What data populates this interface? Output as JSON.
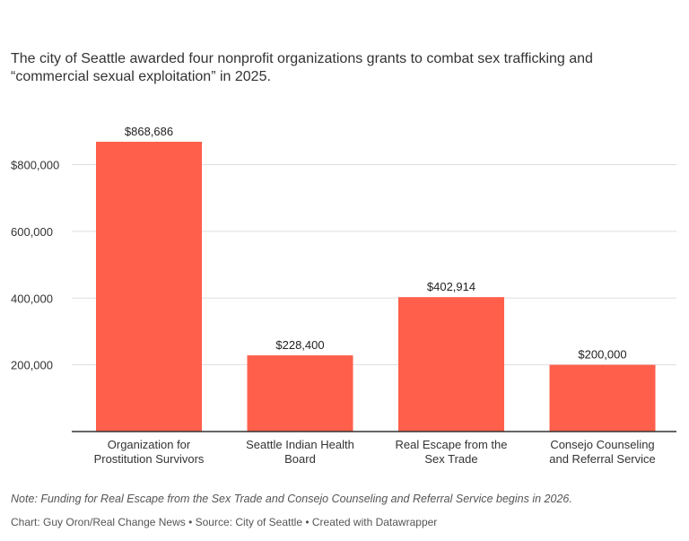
{
  "title": "The city of Seattle awarded four nonprofit organizations grants to combat sex trafficking and “commercial sexual exploitation” in 2025.",
  "note": "Note: Funding for Real Escape from the Sex Trade and Consejo Counseling and Referral Service begins in 2026.",
  "credit": "Chart: Guy Oron/Real Change News • Source: City of Seattle • Created with Datawrapper",
  "colors": {
    "bar": "#ff5f4b",
    "grid": "#dddddd",
    "axis": "#333333"
  },
  "chart_data": {
    "type": "bar",
    "title": "The city of Seattle awarded four nonprofit organizations grants to combat sex trafficking and “commercial sexual exploitation” in 2025.",
    "xlabel": "",
    "ylabel": "",
    "categories": [
      [
        "Organization for",
        "Prostitution Survivors"
      ],
      [
        "Seattle Indian Health",
        "Board"
      ],
      [
        "Real Escape from the",
        "Sex Trade"
      ],
      [
        "Consejo Counseling",
        "and Referral Service"
      ]
    ],
    "values": [
      868686,
      228400,
      402914,
      200000
    ],
    "data_labels": [
      "$868,686",
      "$228,400",
      "$402,914",
      "$200,000"
    ],
    "yticks": [
      {
        "value": 200000,
        "label": "200,000"
      },
      {
        "value": 400000,
        "label": "400,000"
      },
      {
        "value": 600000,
        "label": "600,000"
      },
      {
        "value": 800000,
        "label": "$800,000"
      }
    ],
    "ylim": [
      0,
      868686
    ],
    "grid": true,
    "legend": "none"
  }
}
